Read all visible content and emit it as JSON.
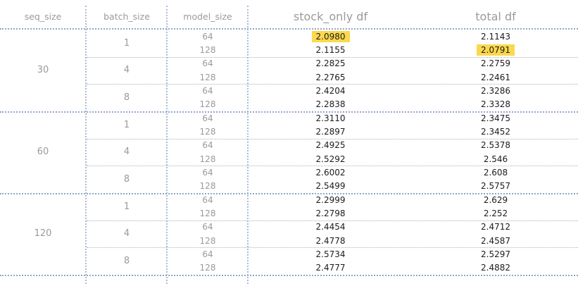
{
  "headers": {
    "seq_size": "seq_size",
    "batch_size": "batch_size",
    "model_size": "model_size",
    "stock_only": "stock_only df",
    "total": "total df"
  },
  "highlight_color": "#fbd84e",
  "groups": [
    {
      "seq_size": "30",
      "batches": [
        {
          "batch_size": "1",
          "rows": [
            {
              "model_size": "64",
              "stock_only": "2.0980",
              "total": "2.1143",
              "highlight_stock": true,
              "highlight_total": false
            },
            {
              "model_size": "128",
              "stock_only": "2.1155",
              "total": "2.0791",
              "highlight_stock": false,
              "highlight_total": true
            }
          ]
        },
        {
          "batch_size": "4",
          "rows": [
            {
              "model_size": "64",
              "stock_only": "2.2825",
              "total": "2.2759"
            },
            {
              "model_size": "128",
              "stock_only": "2.2765",
              "total": "2.2461"
            }
          ]
        },
        {
          "batch_size": "8",
          "rows": [
            {
              "model_size": "64",
              "stock_only": "2.4204",
              "total": "2.3286"
            },
            {
              "model_size": "128",
              "stock_only": "2.2838",
              "total": "2.3328"
            }
          ]
        }
      ]
    },
    {
      "seq_size": "60",
      "batches": [
        {
          "batch_size": "1",
          "rows": [
            {
              "model_size": "64",
              "stock_only": "2.3110",
              "total": "2.3475"
            },
            {
              "model_size": "128",
              "stock_only": "2.2897",
              "total": "2.3452"
            }
          ]
        },
        {
          "batch_size": "4",
          "rows": [
            {
              "model_size": "64",
              "stock_only": "2.4925",
              "total": "2.5378"
            },
            {
              "model_size": "128",
              "stock_only": "2.5292",
              "total": "2.546"
            }
          ]
        },
        {
          "batch_size": "8",
          "rows": [
            {
              "model_size": "64",
              "stock_only": "2.6002",
              "total": "2.608"
            },
            {
              "model_size": "128",
              "stock_only": "2.5499",
              "total": "2.5757"
            }
          ]
        }
      ]
    },
    {
      "seq_size": "120",
      "batches": [
        {
          "batch_size": "1",
          "rows": [
            {
              "model_size": "64",
              "stock_only": "2.2999",
              "total": "2.629"
            },
            {
              "model_size": "128",
              "stock_only": "2.2798",
              "total": "2.252"
            }
          ]
        },
        {
          "batch_size": "4",
          "rows": [
            {
              "model_size": "64",
              "stock_only": "2.4454",
              "total": "2.4712"
            },
            {
              "model_size": "128",
              "stock_only": "2.4778",
              "total": "2.4587"
            }
          ]
        },
        {
          "batch_size": "8",
          "rows": [
            {
              "model_size": "64",
              "stock_only": "2.5734",
              "total": "2.5297"
            },
            {
              "model_size": "128",
              "stock_only": "2.4777",
              "total": "2.4882"
            }
          ]
        }
      ]
    }
  ]
}
